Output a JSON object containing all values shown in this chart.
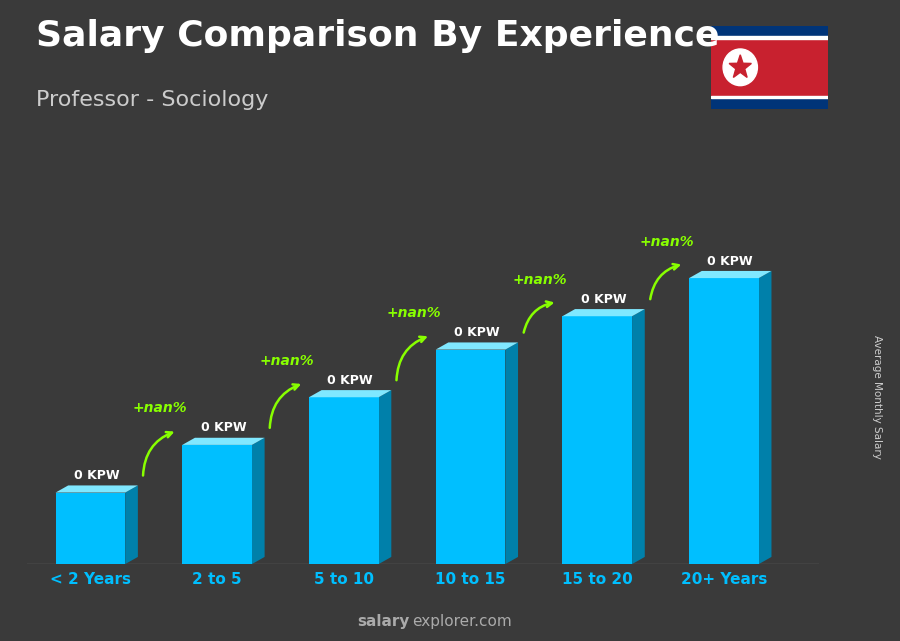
{
  "title": "Salary Comparison By Experience",
  "subtitle": "Professor - Sociology",
  "categories": [
    "< 2 Years",
    "2 to 5",
    "5 to 10",
    "10 to 15",
    "15 to 20",
    "20+ Years"
  ],
  "bar_color_face": "#00BFFF",
  "bar_color_side": "#0080AA",
  "bar_color_top": "#80E8FF",
  "value_labels": [
    "0 KPW",
    "0 KPW",
    "0 KPW",
    "0 KPW",
    "0 KPW",
    "0 KPW"
  ],
  "pct_labels": [
    "+nan%",
    "+nan%",
    "+nan%",
    "+nan%",
    "+nan%"
  ],
  "ylabel": "Average Monthly Salary",
  "footer_bold": "salary",
  "footer_normal": "explorer.com",
  "title_fontsize": 26,
  "subtitle_fontsize": 16,
  "title_color": "#FFFFFF",
  "subtitle_color": "#CCCCCC",
  "bar_heights": [
    1.5,
    2.5,
    3.5,
    4.5,
    5.2,
    6.0
  ],
  "pct_color": "#88FF00",
  "xlabel_color": "#00BFFF",
  "flag_blue": "#003478",
  "flag_red": "#C8212F"
}
